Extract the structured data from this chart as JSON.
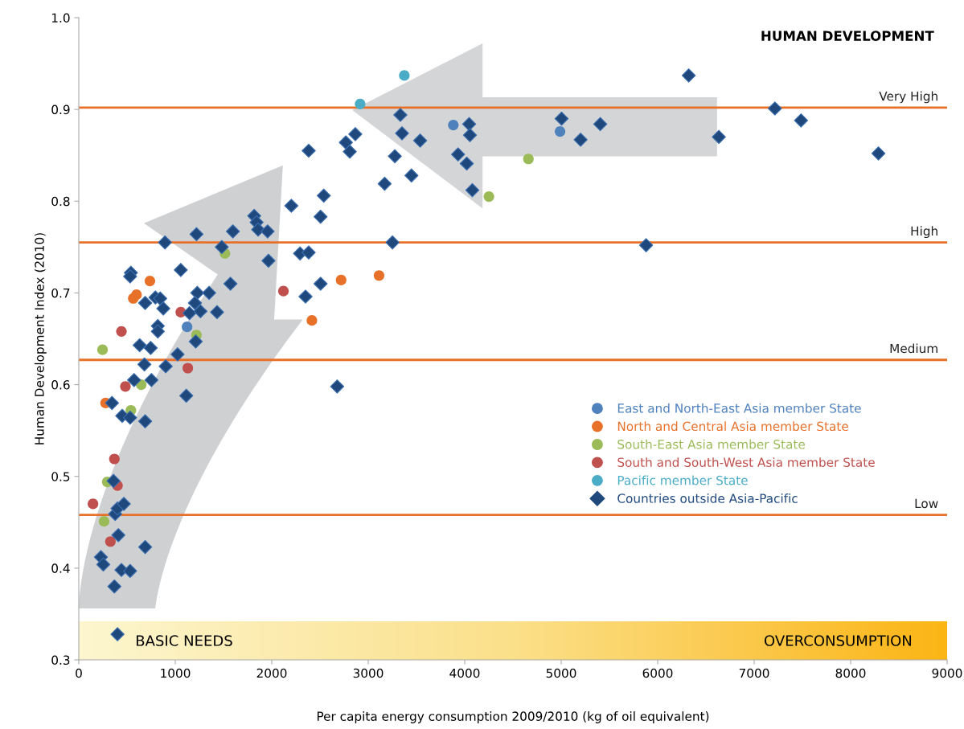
{
  "chart_data": {
    "type": "scatter",
    "xlabel": "Per capita energy consumption 2009/2010 (kg of oil equivalent)",
    "ylabel": "Human Development Index (2010)",
    "xlim": [
      0,
      9000
    ],
    "xticks": [
      0,
      1000,
      2000,
      3000,
      4000,
      5000,
      6000,
      7000,
      8000,
      9000
    ],
    "ylim": [
      0.3,
      1.0
    ],
    "yticks": [
      {
        "value": 0.3,
        "label": "0.3"
      },
      {
        "value": 0.4,
        "label": "0.4"
      },
      {
        "value": 0.5,
        "label": "0.5"
      },
      {
        "value": 0.6,
        "label": "0.6"
      },
      {
        "value": 0.7,
        "label": "0.7"
      },
      {
        "value": 0.8,
        "label": "0.8"
      },
      {
        "value": 0.9,
        "label": "0.9"
      },
      {
        "value": 1.0,
        "label": "1.0"
      }
    ],
    "grid": false,
    "legend": "right",
    "ref_lines": [
      {
        "axis": "y",
        "value": 0.902,
        "label": "Very High",
        "color": "#e8712a"
      },
      {
        "axis": "y",
        "value": 0.755,
        "label": "High",
        "color": "#e8712a"
      },
      {
        "axis": "y",
        "value": 0.627,
        "label": "Medium",
        "color": "#e8712a"
      },
      {
        "axis": "y",
        "value": 0.458,
        "label": "Low",
        "color": "#e8712a"
      }
    ],
    "bands": [
      {
        "axis": "y",
        "from": 0.3,
        "to": 0.342,
        "color": "#fbe08a"
      }
    ],
    "annotations": [
      "HUMAN DEVELOPMENT",
      "BASIC NEEDS",
      "OVERCONSUMPTION"
    ],
    "series": [
      {
        "name": "East and North-East Asia member State",
        "color": "#4f81bd",
        "marker": "circle",
        "x": [
          1122,
          3882,
          4988
        ],
        "values": [
          0.663,
          0.883,
          0.876
        ]
      },
      {
        "name": "North and Central Asia member State",
        "color": "#e8712a",
        "marker": "circle",
        "x": [
          737,
          565,
          598,
          278,
          2719,
          3112,
          2416
        ],
        "values": [
          0.713,
          0.694,
          0.698,
          0.58,
          0.714,
          0.719,
          0.67
        ]
      },
      {
        "name": "South-East Asia member State",
        "color": "#9bbb59",
        "marker": "circle",
        "x": [
          1515,
          1220,
          246,
          647,
          540,
          295,
          262,
          4251,
          4660
        ],
        "values": [
          0.743,
          0.654,
          0.638,
          0.6,
          0.572,
          0.494,
          0.451,
          0.805,
          0.846
        ]
      },
      {
        "name": "South and South-West Asia member State",
        "color": "#c0504d",
        "marker": "circle",
        "x": [
          1057,
          442,
          1130,
          483,
          369,
          401,
          147,
          328,
          2121
        ],
        "values": [
          0.679,
          0.658,
          0.618,
          0.598,
          0.519,
          0.49,
          0.47,
          0.429,
          0.702
        ]
      },
      {
        "name": "Pacific member State",
        "color": "#4bacc6",
        "marker": "circle",
        "x": [
          3374,
          2916
        ],
        "values": [
          0.937,
          0.906
        ]
      },
      {
        "name": "Countries outside Asia-Pacific",
        "color": "#1f497d",
        "marker": "diamond",
        "x": [
          401,
          369,
          229,
          254,
          442,
          532,
          688,
          410,
          377,
          401,
          467,
          344,
          450,
          532,
          688,
          753,
          573,
          1114,
          360,
          893,
          1220,
          1597,
          1482,
          1057,
          540,
          532,
          1572,
          1228,
          1351,
          794,
          844,
          688,
          1204,
          1261,
          876,
          1433,
          1147,
          819,
          819,
          1212,
          631,
          745,
          1024,
          680,
          901,
          2383,
          2866,
          2768,
          2809,
          3350,
          3538,
          3276,
          3448,
          3170,
          2539,
          2203,
          2506,
          1818,
          1843,
          1859,
          1957,
          3251,
          1966,
          2293,
          2383,
          2506,
          2350,
          3333,
          4046,
          4054,
          3931,
          4021,
          4079,
          6322,
          7215,
          7486,
          8288,
          6634,
          5405,
          5201,
          5004,
          5880,
          2678
        ],
        "values": [
          0.328,
          0.38,
          0.412,
          0.404,
          0.398,
          0.397,
          0.423,
          0.436,
          0.459,
          0.465,
          0.47,
          0.58,
          0.566,
          0.564,
          0.56,
          0.605,
          0.605,
          0.588,
          0.495,
          0.755,
          0.764,
          0.767,
          0.75,
          0.725,
          0.722,
          0.718,
          0.71,
          0.7,
          0.7,
          0.695,
          0.694,
          0.689,
          0.689,
          0.68,
          0.683,
          0.679,
          0.678,
          0.664,
          0.658,
          0.647,
          0.643,
          0.64,
          0.633,
          0.622,
          0.62,
          0.855,
          0.873,
          0.864,
          0.854,
          0.874,
          0.866,
          0.849,
          0.828,
          0.819,
          0.806,
          0.795,
          0.783,
          0.784,
          0.777,
          0.769,
          0.767,
          0.755,
          0.735,
          0.743,
          0.744,
          0.71,
          0.696,
          0.894,
          0.884,
          0.872,
          0.851,
          0.841,
          0.812,
          0.937,
          0.901,
          0.888,
          0.852,
          0.87,
          0.884,
          0.867,
          0.89,
          0.752,
          0.598
        ]
      }
    ]
  }
}
